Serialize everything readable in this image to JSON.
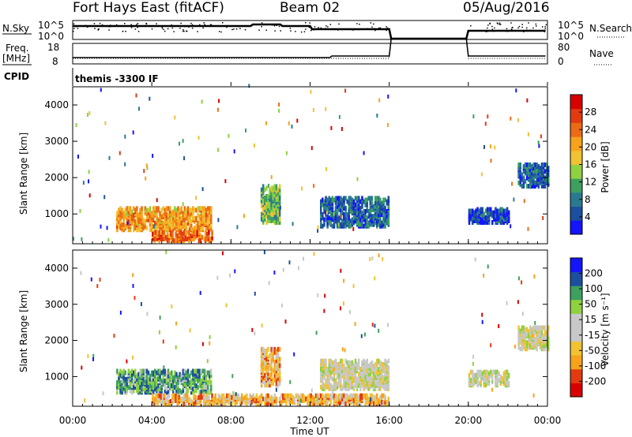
{
  "header": {
    "station": "Fort Hays East (fitACF)",
    "beam": "Beam 02",
    "date": "05/Aug/2016"
  },
  "status_panels": {
    "nsky_label": "N.Sky",
    "nsky_ticks": [
      "10^5",
      "10^0"
    ],
    "nsearch_label": "N.Search",
    "nsearch_ticks": [
      "10^5",
      "10^0"
    ],
    "freq_label_1": "Freq.",
    "freq_label_2": "[MHz]",
    "freq_ticks": [
      "18",
      "8"
    ],
    "nave_label": "Nave",
    "nave_ticks": [
      "80",
      "0"
    ],
    "cpid_label": "CPID",
    "cpid_value": "themis -3300 IF"
  },
  "x_axis": {
    "title": "Time UT",
    "ticks": [
      "00:00",
      "04:00",
      "08:00",
      "12:00",
      "16:00",
      "20:00",
      "00:00"
    ]
  },
  "chart_data": [
    {
      "type": "heatmap",
      "panel": "power",
      "ylabel": "Slant Range [km]",
      "yticks": [
        "1000",
        "2000",
        "3000",
        "4000"
      ],
      "ylim": [
        180,
        4500
      ],
      "xlim_hours": [
        0,
        24
      ],
      "colorbar_label": "Power [dB]",
      "colorbar_ticks": [
        "4",
        "8",
        "12",
        "16",
        "20",
        "24",
        "28"
      ],
      "colorbar_range": [
        0,
        32
      ],
      "colors": [
        "#1414ff",
        "#1c4f9e",
        "#2a7a8f",
        "#3da05f",
        "#8fd140",
        "#f1c232",
        "#f7a21b",
        "#ec6b16",
        "#e23b10",
        "#d90000"
      ],
      "data_gaps_hours": [
        [
          16,
          20
        ]
      ],
      "observations": [
        {
          "t0": 2.2,
          "t1": 7.0,
          "r0": 500,
          "r1": 1100,
          "level": 0.65
        },
        {
          "t0": 4.0,
          "t1": 7.0,
          "r0": 200,
          "r1": 450,
          "level": 0.75
        },
        {
          "t0": 9.5,
          "t1": 10.5,
          "r0": 700,
          "r1": 1700,
          "level": 0.4
        },
        {
          "t0": 12.5,
          "t1": 16.0,
          "r0": 600,
          "r1": 1400,
          "level": 0.2
        },
        {
          "t0": 20.0,
          "t1": 22.0,
          "r0": 700,
          "r1": 1100,
          "level": 0.15
        },
        {
          "t0": 22.5,
          "t1": 24.0,
          "r0": 1700,
          "r1": 2300,
          "level": 0.2
        }
      ]
    },
    {
      "type": "heatmap",
      "panel": "velocity",
      "ylabel": "Slant Range [km]",
      "yticks": [
        "1000",
        "2000",
        "3000",
        "4000"
      ],
      "ylim": [
        180,
        4500
      ],
      "xlim_hours": [
        0,
        24
      ],
      "colorbar_label": "Velocity [m s⁻¹]",
      "colorbar_ticks": [
        "-200",
        "-100",
        "-50",
        "-15",
        "15",
        "50",
        "100",
        "200"
      ],
      "colorbar_range": [
        -250,
        250
      ],
      "colors": [
        "#d90000",
        "#e23b10",
        "#f7a21b",
        "#f1c232",
        "#c8c8c8",
        "#c8c8c8",
        "#8fd140",
        "#3da05f",
        "#1c4f9e",
        "#1414ff"
      ],
      "data_gaps_hours": [
        [
          16,
          20
        ]
      ],
      "observations": [
        {
          "t0": 2.2,
          "t1": 7.0,
          "r0": 500,
          "r1": 1100,
          "level": 0.72
        },
        {
          "t0": 4.0,
          "t1": 16.0,
          "r0": 180,
          "r1": 450,
          "level": 0.32
        },
        {
          "t0": 9.5,
          "t1": 10.5,
          "r0": 700,
          "r1": 1700,
          "level": 0.3
        },
        {
          "t0": 12.5,
          "t1": 16.0,
          "r0": 600,
          "r1": 1400,
          "level": 0.5
        },
        {
          "t0": 20.0,
          "t1": 22.0,
          "r0": 700,
          "r1": 1100,
          "level": 0.5
        },
        {
          "t0": 22.5,
          "t1": 24.0,
          "r0": 1700,
          "r1": 2300,
          "level": 0.5
        }
      ]
    }
  ]
}
